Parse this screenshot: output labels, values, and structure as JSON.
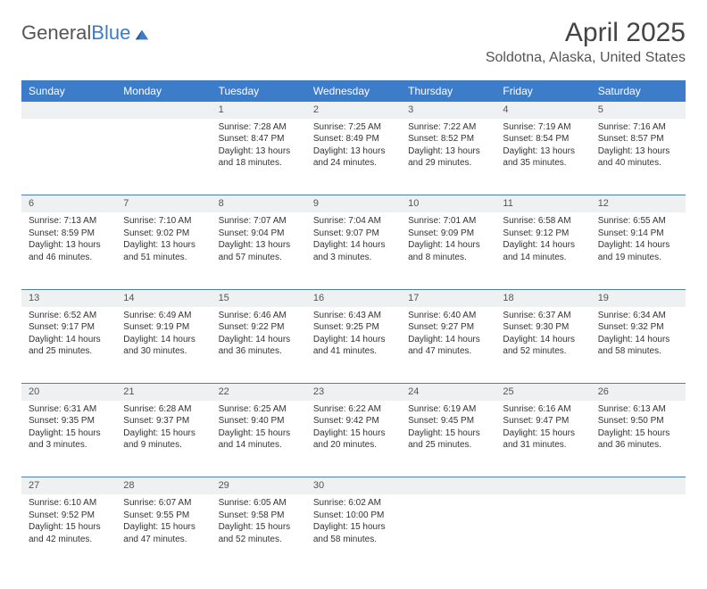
{
  "brand": {
    "part1": "General",
    "part2": "Blue"
  },
  "title": "April 2025",
  "location": "Soldotna, Alaska, United States",
  "style": {
    "header_bg": "#3d7cc9",
    "header_fg": "#ffffff",
    "daynum_bg": "#eef0f1",
    "cell_border": "#4a7fb5",
    "body_font_size": 10,
    "title_font_size": 30
  },
  "weekdays": [
    "Sunday",
    "Monday",
    "Tuesday",
    "Wednesday",
    "Thursday",
    "Friday",
    "Saturday"
  ],
  "weeks": [
    [
      null,
      null,
      {
        "n": "1",
        "sr": "7:28 AM",
        "ss": "8:47 PM",
        "dl": "13 hours and 18 minutes."
      },
      {
        "n": "2",
        "sr": "7:25 AM",
        "ss": "8:49 PM",
        "dl": "13 hours and 24 minutes."
      },
      {
        "n": "3",
        "sr": "7:22 AM",
        "ss": "8:52 PM",
        "dl": "13 hours and 29 minutes."
      },
      {
        "n": "4",
        "sr": "7:19 AM",
        "ss": "8:54 PM",
        "dl": "13 hours and 35 minutes."
      },
      {
        "n": "5",
        "sr": "7:16 AM",
        "ss": "8:57 PM",
        "dl": "13 hours and 40 minutes."
      }
    ],
    [
      {
        "n": "6",
        "sr": "7:13 AM",
        "ss": "8:59 PM",
        "dl": "13 hours and 46 minutes."
      },
      {
        "n": "7",
        "sr": "7:10 AM",
        "ss": "9:02 PM",
        "dl": "13 hours and 51 minutes."
      },
      {
        "n": "8",
        "sr": "7:07 AM",
        "ss": "9:04 PM",
        "dl": "13 hours and 57 minutes."
      },
      {
        "n": "9",
        "sr": "7:04 AM",
        "ss": "9:07 PM",
        "dl": "14 hours and 3 minutes."
      },
      {
        "n": "10",
        "sr": "7:01 AM",
        "ss": "9:09 PM",
        "dl": "14 hours and 8 minutes."
      },
      {
        "n": "11",
        "sr": "6:58 AM",
        "ss": "9:12 PM",
        "dl": "14 hours and 14 minutes."
      },
      {
        "n": "12",
        "sr": "6:55 AM",
        "ss": "9:14 PM",
        "dl": "14 hours and 19 minutes."
      }
    ],
    [
      {
        "n": "13",
        "sr": "6:52 AM",
        "ss": "9:17 PM",
        "dl": "14 hours and 25 minutes."
      },
      {
        "n": "14",
        "sr": "6:49 AM",
        "ss": "9:19 PM",
        "dl": "14 hours and 30 minutes."
      },
      {
        "n": "15",
        "sr": "6:46 AM",
        "ss": "9:22 PM",
        "dl": "14 hours and 36 minutes."
      },
      {
        "n": "16",
        "sr": "6:43 AM",
        "ss": "9:25 PM",
        "dl": "14 hours and 41 minutes."
      },
      {
        "n": "17",
        "sr": "6:40 AM",
        "ss": "9:27 PM",
        "dl": "14 hours and 47 minutes."
      },
      {
        "n": "18",
        "sr": "6:37 AM",
        "ss": "9:30 PM",
        "dl": "14 hours and 52 minutes."
      },
      {
        "n": "19",
        "sr": "6:34 AM",
        "ss": "9:32 PM",
        "dl": "14 hours and 58 minutes."
      }
    ],
    [
      {
        "n": "20",
        "sr": "6:31 AM",
        "ss": "9:35 PM",
        "dl": "15 hours and 3 minutes."
      },
      {
        "n": "21",
        "sr": "6:28 AM",
        "ss": "9:37 PM",
        "dl": "15 hours and 9 minutes."
      },
      {
        "n": "22",
        "sr": "6:25 AM",
        "ss": "9:40 PM",
        "dl": "15 hours and 14 minutes."
      },
      {
        "n": "23",
        "sr": "6:22 AM",
        "ss": "9:42 PM",
        "dl": "15 hours and 20 minutes."
      },
      {
        "n": "24",
        "sr": "6:19 AM",
        "ss": "9:45 PM",
        "dl": "15 hours and 25 minutes."
      },
      {
        "n": "25",
        "sr": "6:16 AM",
        "ss": "9:47 PM",
        "dl": "15 hours and 31 minutes."
      },
      {
        "n": "26",
        "sr": "6:13 AM",
        "ss": "9:50 PM",
        "dl": "15 hours and 36 minutes."
      }
    ],
    [
      {
        "n": "27",
        "sr": "6:10 AM",
        "ss": "9:52 PM",
        "dl": "15 hours and 42 minutes."
      },
      {
        "n": "28",
        "sr": "6:07 AM",
        "ss": "9:55 PM",
        "dl": "15 hours and 47 minutes."
      },
      {
        "n": "29",
        "sr": "6:05 AM",
        "ss": "9:58 PM",
        "dl": "15 hours and 52 minutes."
      },
      {
        "n": "30",
        "sr": "6:02 AM",
        "ss": "10:00 PM",
        "dl": "15 hours and 58 minutes."
      },
      null,
      null,
      null
    ]
  ],
  "labels": {
    "sunrise": "Sunrise: ",
    "sunset": "Sunset: ",
    "daylight": "Daylight: "
  }
}
